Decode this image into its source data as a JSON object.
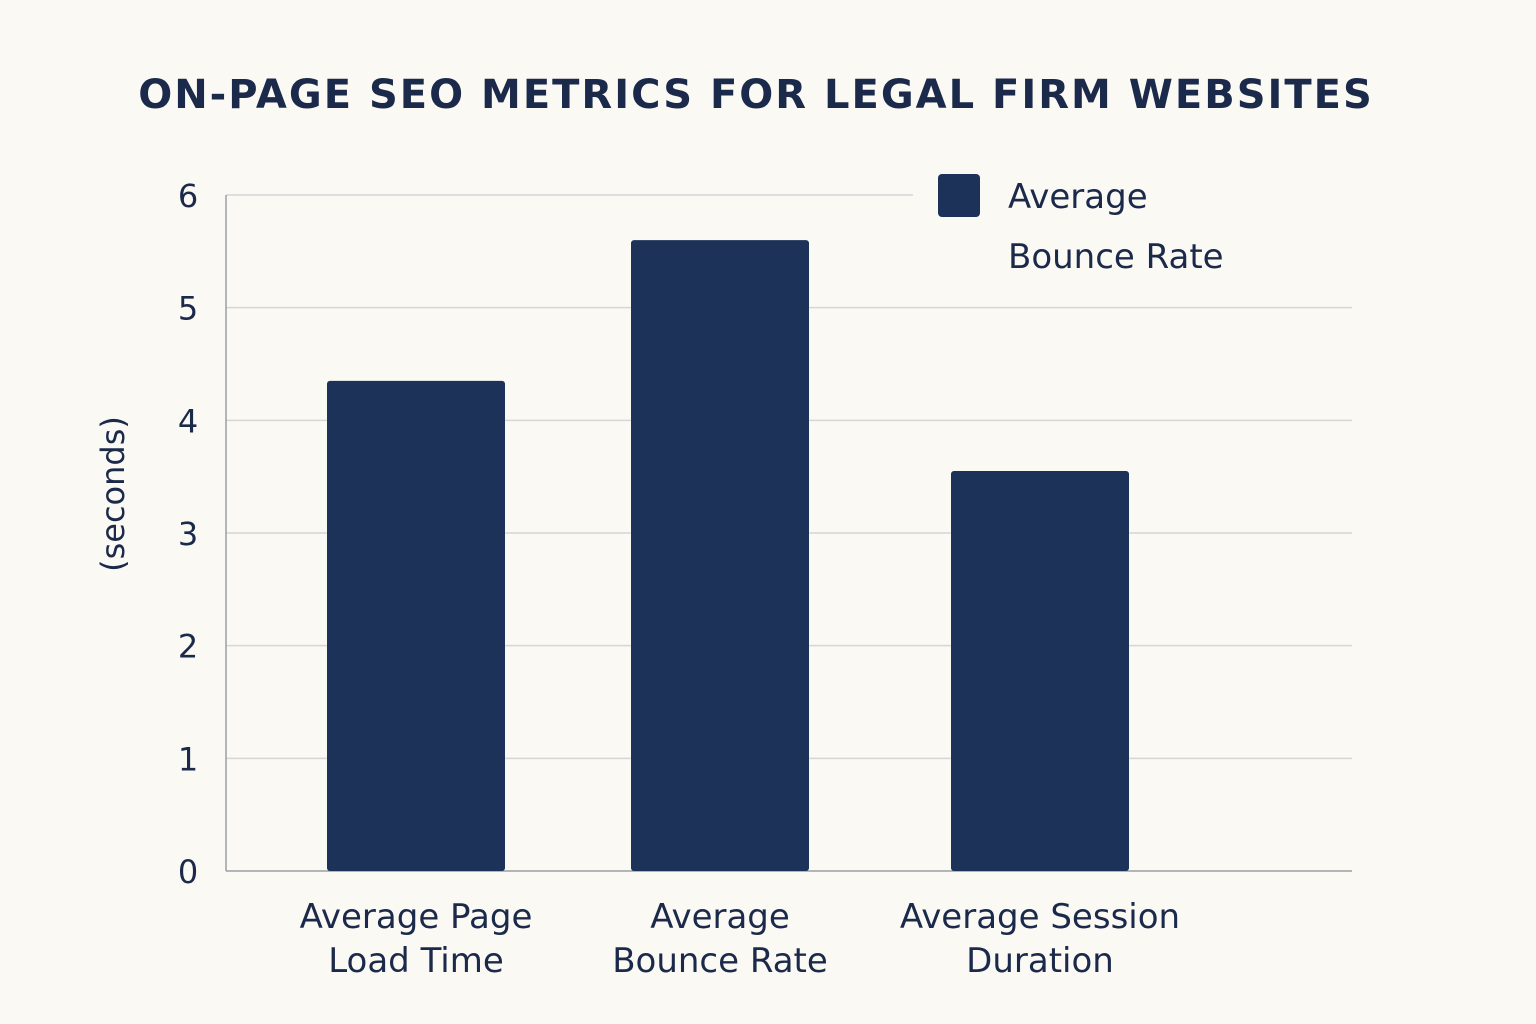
{
  "chart_data": {
    "type": "bar",
    "title": "ON-PAGE SEO METRICS FOR LEGAL FIRM WEBSITES",
    "xlabel": "",
    "ylabel": "(seconds)",
    "ylim": [
      0,
      6
    ],
    "yticks": [
      "0",
      "1",
      "2",
      "3",
      "4",
      "5",
      "6"
    ],
    "categories": [
      [
        "Average Page",
        "Load Time"
      ],
      [
        "Average",
        "Bounce Rate"
      ],
      [
        "Average Session",
        "Duration"
      ]
    ],
    "values": [
      4.35,
      5.6,
      3.55
    ],
    "legend": {
      "lines": [
        "Average",
        "Bounce Rate"
      ],
      "position": "top-right"
    },
    "grid": true,
    "colors": {
      "bar": "#1c3258",
      "grid": "#d6d6d6",
      "axis": "#9a9fa8",
      "text": "#1b2a4a"
    }
  }
}
